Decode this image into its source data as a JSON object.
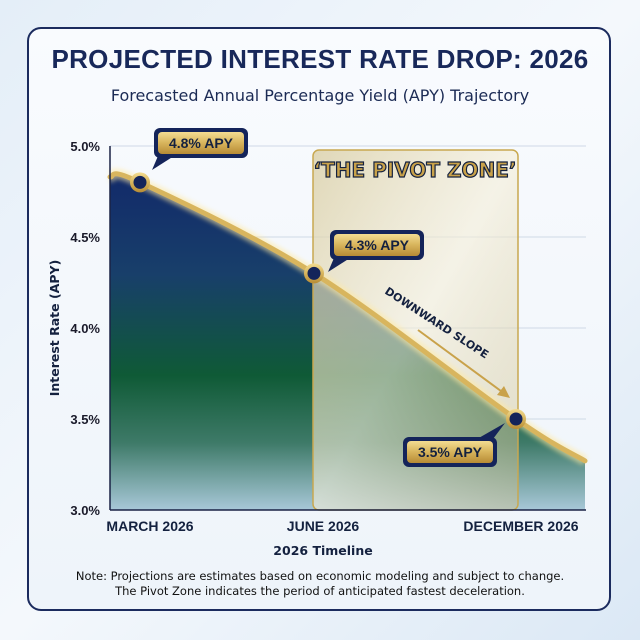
{
  "title": "PROJECTED INTEREST RATE DROP: 2026",
  "subtitle": "Forecasted Annual Percentage Yield (APY) Trajectory",
  "note": {
    "line1": "Note: Projections are estimates based on economic modeling and subject to change.",
    "line2": "The Pivot Zone indicates the period of anticipated fastest deceleration."
  },
  "colors": {
    "navy": "#18285a",
    "gold": "#d9b45a",
    "green": "#1f5e3a"
  },
  "chart_data": {
    "type": "area",
    "title": "PROJECTED INTEREST RATE DROP: 2026",
    "xlabel": "2026 Timeline",
    "ylabel": "Interest Rate (APY)",
    "categories": [
      "MARCH 2026",
      "JUNE 2026",
      "DECEMBER 2026"
    ],
    "values": [
      4.8,
      4.3,
      3.5
    ],
    "data_labels": [
      "4.8% APY",
      "4.3% APY",
      "3.5% APY"
    ],
    "ylim": [
      3.0,
      5.0
    ],
    "yticks": [
      {
        "value": 5.0,
        "label": "5.0%"
      },
      {
        "value": 4.5,
        "label": "4.5%"
      },
      {
        "value": 4.0,
        "label": "4.0%"
      },
      {
        "value": 3.5,
        "label": "3.5%"
      },
      {
        "value": 3.0,
        "label": "3.0%"
      }
    ],
    "grid": true,
    "annotations": {
      "pivot_zone": {
        "label": "‘THE PIVOT ZONE’",
        "from": "JUNE 2026",
        "to": "DECEMBER 2026"
      },
      "slope_label": "DOWNWARD SLOPE"
    }
  }
}
